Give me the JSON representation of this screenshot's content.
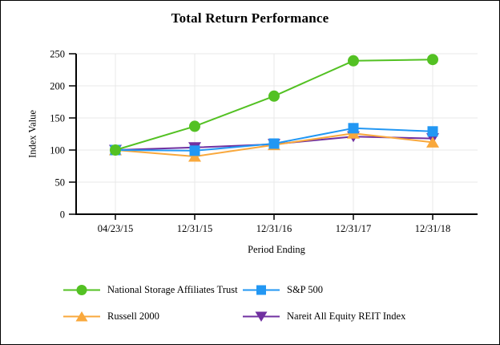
{
  "title": "Total Return Performance",
  "chart_data": {
    "type": "line",
    "title": "Total Return Performance",
    "xlabel": "Period Ending",
    "ylabel": "Index Value",
    "categories": [
      "04/23/15",
      "12/31/15",
      "12/31/16",
      "12/31/17",
      "12/31/18"
    ],
    "yticks": [
      0,
      50,
      100,
      150,
      200,
      250
    ],
    "ylim": [
      0,
      250
    ],
    "grid": true,
    "legend_position": "bottom",
    "series": [
      {
        "name": "National Storage Affiliates Trust",
        "color": "#53C123",
        "marker": "circle",
        "values": [
          100,
          137,
          184,
          239,
          241
        ]
      },
      {
        "name": "S&P 500",
        "color": "#2297F3",
        "marker": "square",
        "values": [
          100,
          99,
          110,
          134,
          129
        ]
      },
      {
        "name": "Russell 2000",
        "color": "#F9A83C",
        "marker": "triangle-up",
        "values": [
          100,
          90,
          108,
          126,
          112
        ]
      },
      {
        "name": "Nareit All Equity REIT Index",
        "color": "#7030A0",
        "marker": "triangle-down",
        "values": [
          100,
          104,
          109,
          121,
          118
        ]
      }
    ],
    "colors": {
      "gridline": "#E8E8E8",
      "axis": "#000000",
      "background": "#FFFFFF"
    }
  }
}
